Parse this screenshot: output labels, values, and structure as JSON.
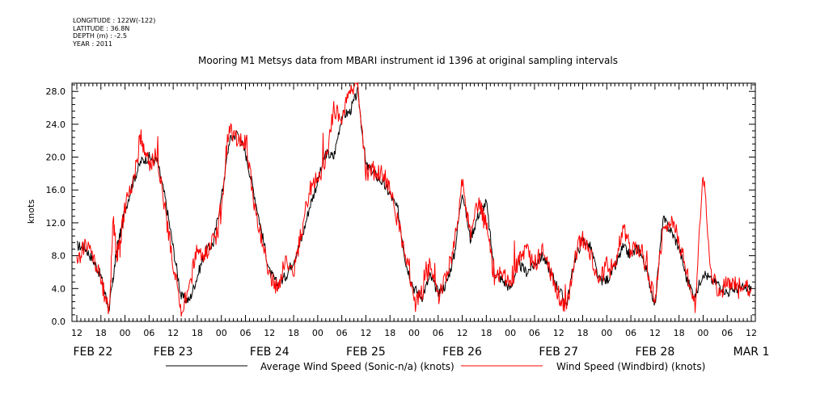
{
  "meta": {
    "longitude": "LONGITUDE : 122W(-122)",
    "latitude": "LATITUDE : 36.8N",
    "depth": "DEPTH (m) : -2.5",
    "year": "YEAR : 2011"
  },
  "chart_data": {
    "type": "line",
    "title": "Mooring M1 Metsys data from MBARI instrument id 1396 at original sampling intervals",
    "ylabel": "knots",
    "xlabel": "",
    "ylim": [
      0,
      29
    ],
    "xlim_hours": [
      0,
      168
    ],
    "grid": false,
    "legend": "bottom",
    "yticks": [
      "0.0",
      "4.0",
      "8.0",
      "12.0",
      "16.0",
      "20.0",
      "24.0",
      "28.0"
    ],
    "hour_labels": [
      "12",
      "18",
      "00",
      "06",
      "12",
      "18",
      "00",
      "06",
      "12",
      "18",
      "00",
      "06",
      "12",
      "18",
      "00",
      "06",
      "12",
      "18",
      "00",
      "06",
      "12",
      "18",
      "00",
      "06",
      "12",
      "18",
      "00",
      "06",
      "12"
    ],
    "day_labels": [
      "FEB 22",
      "FEB 23",
      "FEB 24",
      "FEB 25",
      "FEB 26",
      "FEB 27",
      "FEB 28",
      "MAR  1"
    ],
    "colors": {
      "avg": "#000000",
      "windbird": "#ff0000"
    },
    "series": [
      {
        "name": "Average Wind Speed (Sonic-n/a) (knots)",
        "x_hours": [
          0,
          2,
          4,
          6,
          8,
          9,
          10,
          11,
          12,
          14,
          16,
          18,
          20,
          22,
          24,
          26,
          28,
          30,
          32,
          34,
          36,
          38,
          40,
          42,
          44,
          46,
          48,
          50,
          52,
          54,
          56,
          58,
          60,
          62,
          64,
          66,
          68,
          70,
          72,
          74,
          76,
          78,
          80,
          82,
          84,
          86,
          88,
          90,
          92,
          94,
          96,
          98,
          100,
          102,
          104,
          106,
          108,
          110,
          112,
          114,
          116,
          118,
          120,
          122,
          124,
          126,
          128,
          130,
          132,
          134,
          136,
          138,
          140,
          142,
          144,
          146,
          148,
          150,
          152,
          154,
          156,
          158,
          160,
          162,
          164,
          166,
          168
        ],
        "values": [
          9.2,
          9.0,
          7.5,
          5.5,
          1.5,
          5.0,
          9.0,
          11.0,
          13.5,
          17.0,
          19.5,
          20.0,
          19.5,
          15.0,
          9.0,
          3.0,
          2.5,
          5.5,
          8.5,
          9.5,
          15.0,
          22.0,
          23.0,
          20.5,
          16.0,
          11.0,
          6.0,
          4.5,
          5.5,
          7.5,
          10.0,
          14.0,
          17.0,
          20.5,
          20.0,
          25.0,
          25.5,
          28.0,
          19.0,
          18.0,
          17.0,
          15.5,
          13.5,
          7.0,
          4.0,
          3.0,
          5.5,
          3.5,
          4.5,
          8.0,
          16.0,
          10.0,
          13.0,
          14.5,
          6.0,
          5.0,
          4.0,
          7.0,
          6.0,
          7.0,
          8.0,
          6.0,
          4.0,
          2.0,
          7.5,
          10.0,
          9.0,
          5.0,
          5.0,
          6.5,
          9.0,
          8.0,
          9.0,
          6.0,
          2.0,
          12.5,
          11.0,
          9.0,
          5.0,
          3.0,
          6.0,
          5.0,
          4.5,
          3.5,
          4.0,
          4.0,
          4.0
        ]
      },
      {
        "name": "Wind Speed (Windbird) (knots)",
        "x_hours": [
          0,
          2,
          4,
          6,
          8,
          9,
          10,
          11,
          12,
          14,
          16,
          18,
          20,
          22,
          24,
          26,
          28,
          30,
          32,
          34,
          36,
          38,
          40,
          42,
          44,
          46,
          48,
          50,
          52,
          54,
          56,
          58,
          60,
          62,
          64,
          66,
          68,
          70,
          72,
          74,
          76,
          78,
          80,
          82,
          84,
          86,
          88,
          90,
          92,
          94,
          96,
          98,
          100,
          102,
          104,
          106,
          108,
          110,
          112,
          114,
          116,
          118,
          120,
          122,
          124,
          126,
          128,
          130,
          132,
          134,
          136,
          138,
          140,
          142,
          144,
          146,
          148,
          150,
          152,
          154,
          156,
          158,
          160,
          162,
          164,
          166,
          168
        ],
        "values": [
          7.0,
          9.5,
          8.0,
          5.0,
          1.0,
          12.5,
          8.0,
          10.5,
          14.0,
          17.0,
          22.5,
          19.0,
          20.5,
          13.5,
          7.0,
          1.0,
          4.0,
          9.0,
          8.0,
          10.0,
          13.0,
          23.5,
          22.0,
          22.0,
          15.0,
          10.0,
          5.5,
          4.0,
          7.5,
          6.0,
          11.0,
          16.0,
          17.5,
          19.5,
          26.0,
          24.5,
          28.5,
          29.0,
          18.0,
          18.5,
          18.0,
          16.5,
          12.0,
          8.0,
          2.0,
          3.5,
          7.0,
          3.0,
          5.5,
          9.0,
          17.0,
          10.5,
          14.5,
          12.0,
          5.0,
          6.0,
          4.5,
          7.5,
          8.5,
          7.0,
          8.5,
          6.0,
          3.0,
          1.5,
          8.0,
          10.5,
          8.0,
          4.5,
          7.0,
          7.0,
          11.5,
          8.5,
          9.0,
          6.5,
          2.5,
          11.0,
          12.5,
          10.0,
          6.0,
          2.0,
          18.0,
          6.0,
          3.0,
          5.0,
          4.5,
          4.0,
          4.0
        ]
      }
    ]
  },
  "legend": {
    "avg_label": "Average Wind Speed (Sonic-n/a) (knots)",
    "windbird_label": "Wind Speed (Windbird) (knots)"
  }
}
